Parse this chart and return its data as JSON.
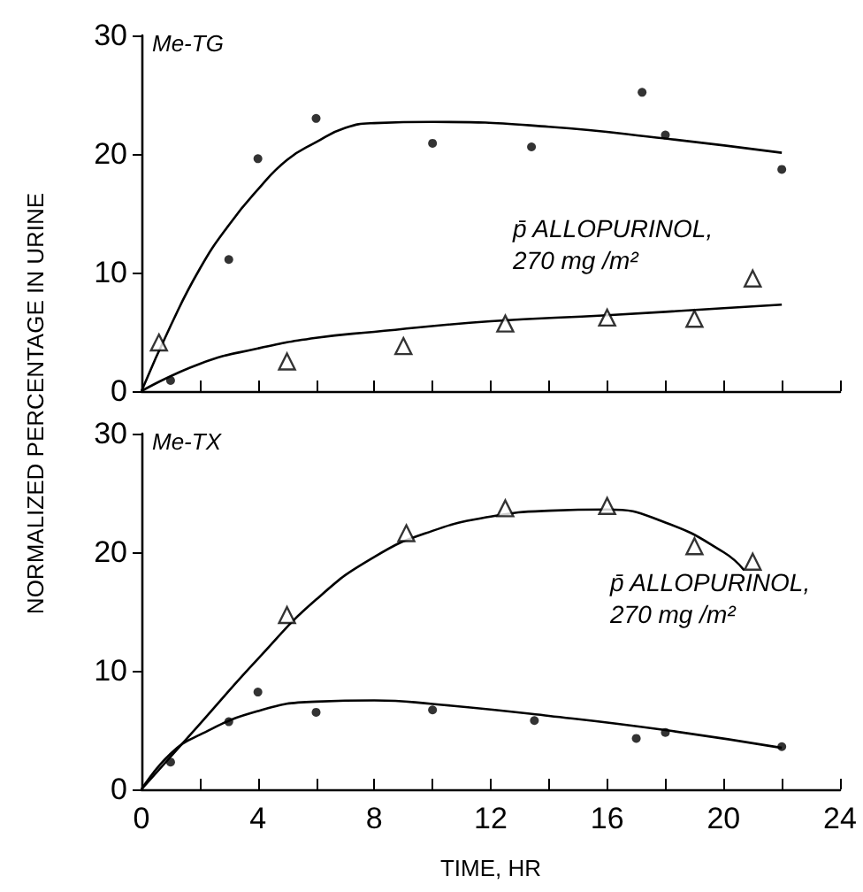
{
  "chart_data": [
    {
      "type": "scatter",
      "title": "Me-TG",
      "ylabel": "NORMALIZED PERCENTAGE IN URINE",
      "tick_labels": "y",
      "grid": false,
      "annotations": [
        "p̄ ALLOPURINOL,\n270 mg /m²"
      ],
      "xlim": [
        0,
        24
      ],
      "ylim": [
        0,
        30
      ],
      "xticks": [
        0,
        2,
        4,
        6,
        8,
        10,
        12,
        14,
        16,
        18,
        20,
        22,
        24
      ],
      "yticks": [
        0,
        10,
        20,
        30
      ],
      "series": [
        {
          "type": "scatter",
          "marker": "circle",
          "color": "#000000",
          "x": [
            1,
            3,
            4,
            6,
            10,
            13.4,
            17.2,
            18,
            22
          ],
          "values": [
            0.9,
            11.1,
            19.6,
            23,
            20.9,
            20.6,
            25.2,
            21.6,
            18.7
          ]
        },
        {
          "type": "scatter",
          "marker": "triangle",
          "color": "#000000",
          "x": [
            0.6,
            5,
            9,
            12.5,
            16,
            19,
            21
          ],
          "values": [
            4.1,
            2.5,
            3.8,
            5.7,
            6.2,
            6.1,
            9.5
          ]
        },
        {
          "type": "line",
          "marker": "none",
          "color": "#000000",
          "x": [
            0,
            1,
            2,
            3,
            4,
            5,
            6,
            7,
            8,
            10,
            14,
            18,
            22
          ],
          "values": [
            0,
            5.5,
            10.3,
            14,
            17,
            19.5,
            21,
            22.2,
            22.6,
            22.7,
            22.3,
            21.3,
            20.1
          ]
        },
        {
          "type": "line",
          "marker": "none",
          "color": "#000000",
          "x": [
            0,
            2,
            4,
            6,
            8,
            12,
            16,
            20,
            22
          ],
          "values": [
            0,
            2.3,
            3.6,
            4.5,
            5,
            5.9,
            6.4,
            7,
            7.3
          ]
        }
      ]
    },
    {
      "type": "scatter",
      "title": "Me-TX",
      "xlabel": "TIME, HR",
      "grid": false,
      "annotations": [
        "p̄ ALLOPURINOL,\n270 mg /m²"
      ],
      "xlim": [
        0,
        24
      ],
      "ylim": [
        0,
        30
      ],
      "xticks": [
        0,
        {
          "value": 2,
          "label": null
        },
        4,
        {
          "value": 6,
          "label": null
        },
        8,
        {
          "value": 10,
          "label": null
        },
        12,
        {
          "value": 14,
          "label": null
        },
        16,
        {
          "value": 18,
          "label": null
        },
        20,
        {
          "value": 22,
          "label": null
        },
        24
      ],
      "yticks": [
        0,
        10,
        20,
        30
      ],
      "series": [
        {
          "type": "scatter",
          "marker": "triangle",
          "color": "#000000",
          "x": [
            5,
            9.1,
            12.5,
            16,
            19,
            21
          ],
          "values": [
            14.7,
            21.6,
            23.7,
            23.9,
            20.5,
            19.2
          ]
        },
        {
          "type": "scatter",
          "marker": "circle",
          "color": "#000000",
          "x": [
            1,
            3,
            4,
            6,
            10,
            13.5,
            17,
            18,
            22
          ],
          "values": [
            2.3,
            5.7,
            8.2,
            6.5,
            6.7,
            5.8,
            4.3,
            4.8,
            3.6
          ]
        },
        {
          "type": "line",
          "marker": "none",
          "color": "#000000",
          "x": [
            0,
            2,
            4,
            6,
            8,
            10,
            12,
            14,
            16,
            18,
            20,
            20.7
          ],
          "values": [
            0,
            5.5,
            11,
            16,
            19.6,
            21.8,
            23,
            23.5,
            23.6,
            22.5,
            20,
            18.5
          ]
        },
        {
          "type": "line",
          "marker": "none",
          "color": "#000000",
          "x": [
            0,
            1,
            2,
            4,
            6,
            8,
            10,
            14,
            18,
            22
          ],
          "values": [
            0,
            3,
            4.6,
            6.6,
            7.4,
            7.5,
            7.2,
            6.2,
            5,
            3.5
          ]
        }
      ]
    }
  ]
}
